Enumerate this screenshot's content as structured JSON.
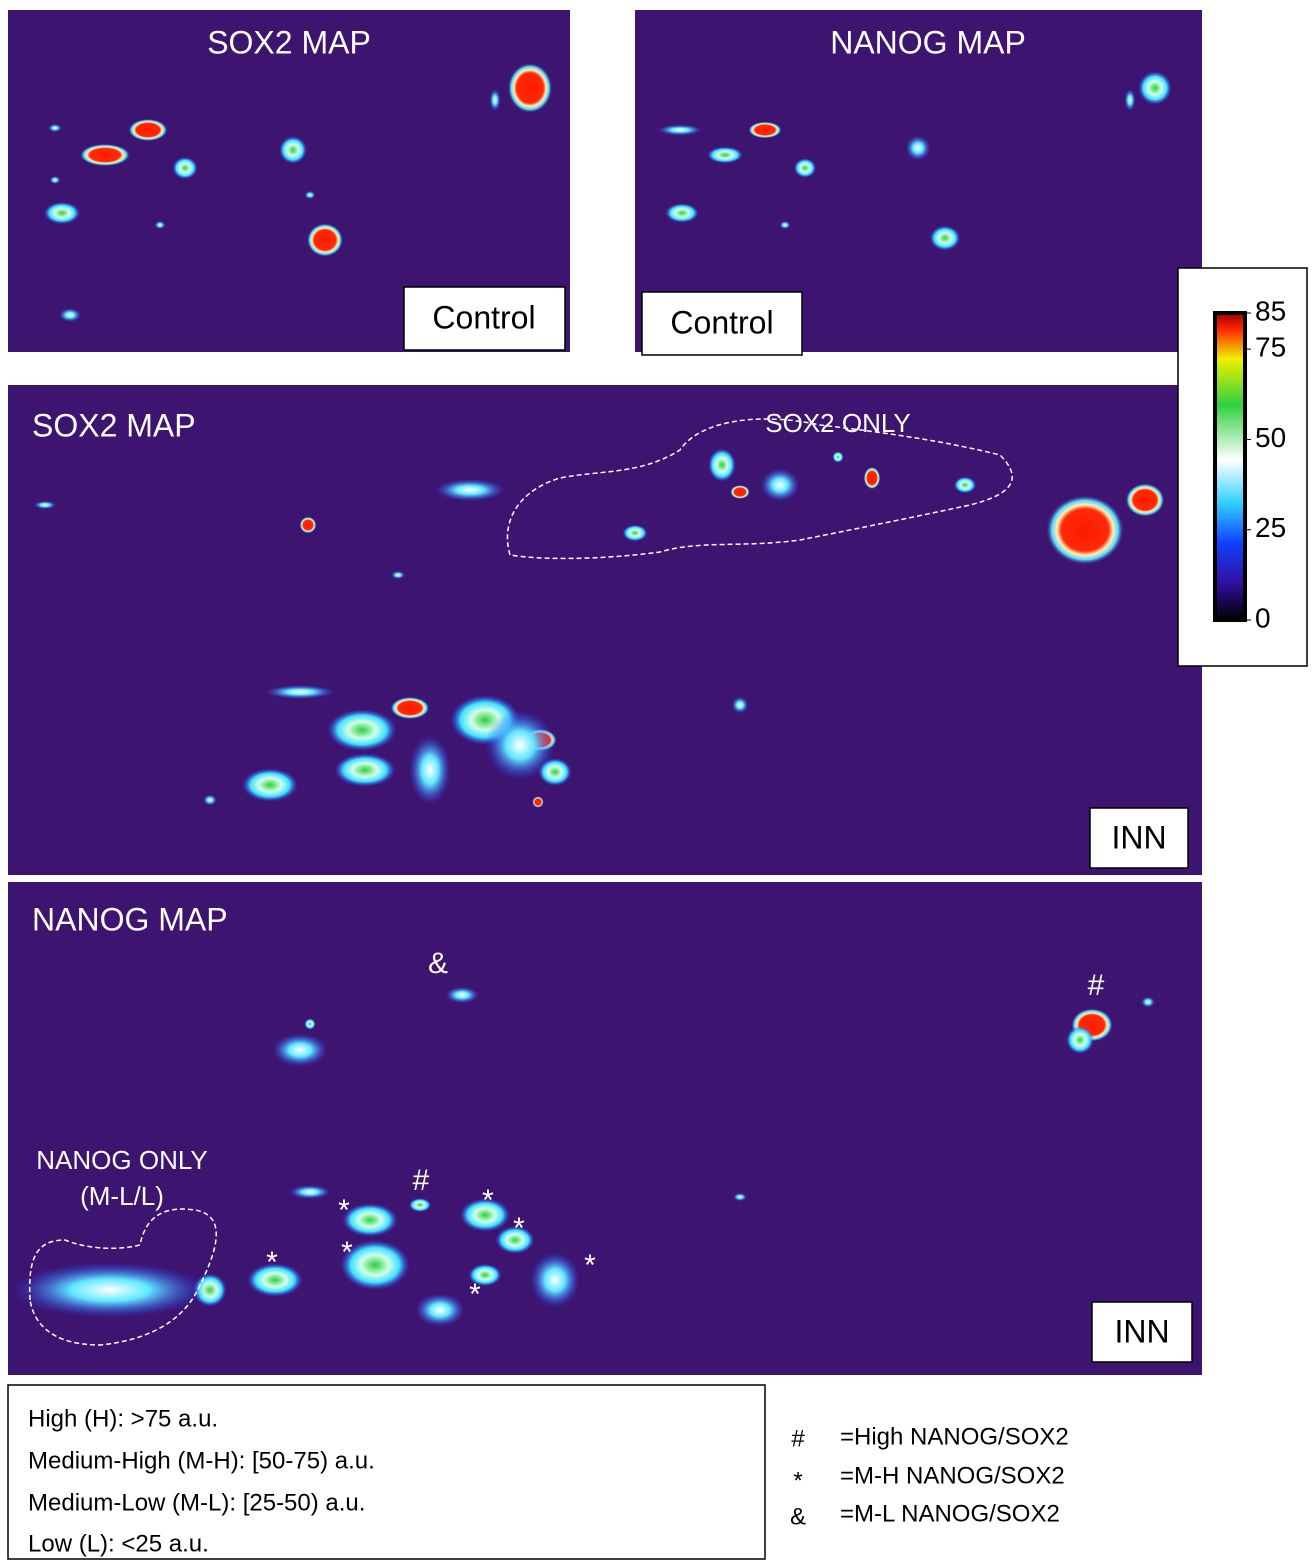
{
  "panels": [
    {
      "title": "SOX2 MAP",
      "label": "Control"
    },
    {
      "title": "NANOG MAP",
      "label": "Control"
    },
    {
      "title": "SOX2 MAP",
      "label": "INN",
      "region": [
        "SOX2 ONLY"
      ]
    },
    {
      "title": "NANOG MAP",
      "label": "INN",
      "region": [
        "NANOG ONLY",
        "(M-L/L)"
      ]
    }
  ],
  "colorbar": {
    "ylim": [
      0,
      85
    ],
    "ticks": [
      0,
      25,
      50,
      75,
      85
    ]
  },
  "markers": [
    "&",
    "#",
    "#",
    "*",
    "*",
    "*",
    "*",
    "*",
    "*",
    "*"
  ],
  "intensity_levels": [
    "High (H): >75 a.u.",
    "Medium-High (M-H):  [50-75) a.u.",
    "Medium-Low (M-L): [25-50) a.u.",
    "Low (L): <25 a.u."
  ],
  "symbol_key": [
    {
      "symbol": "#",
      "meaning": "=High NANOG/SOX2"
    },
    {
      "symbol": "*",
      "meaning": "=M-H NANOG/SOX2"
    },
    {
      "symbol": "&",
      "meaning": "=M-L NANOG/SOX2"
    }
  ]
}
